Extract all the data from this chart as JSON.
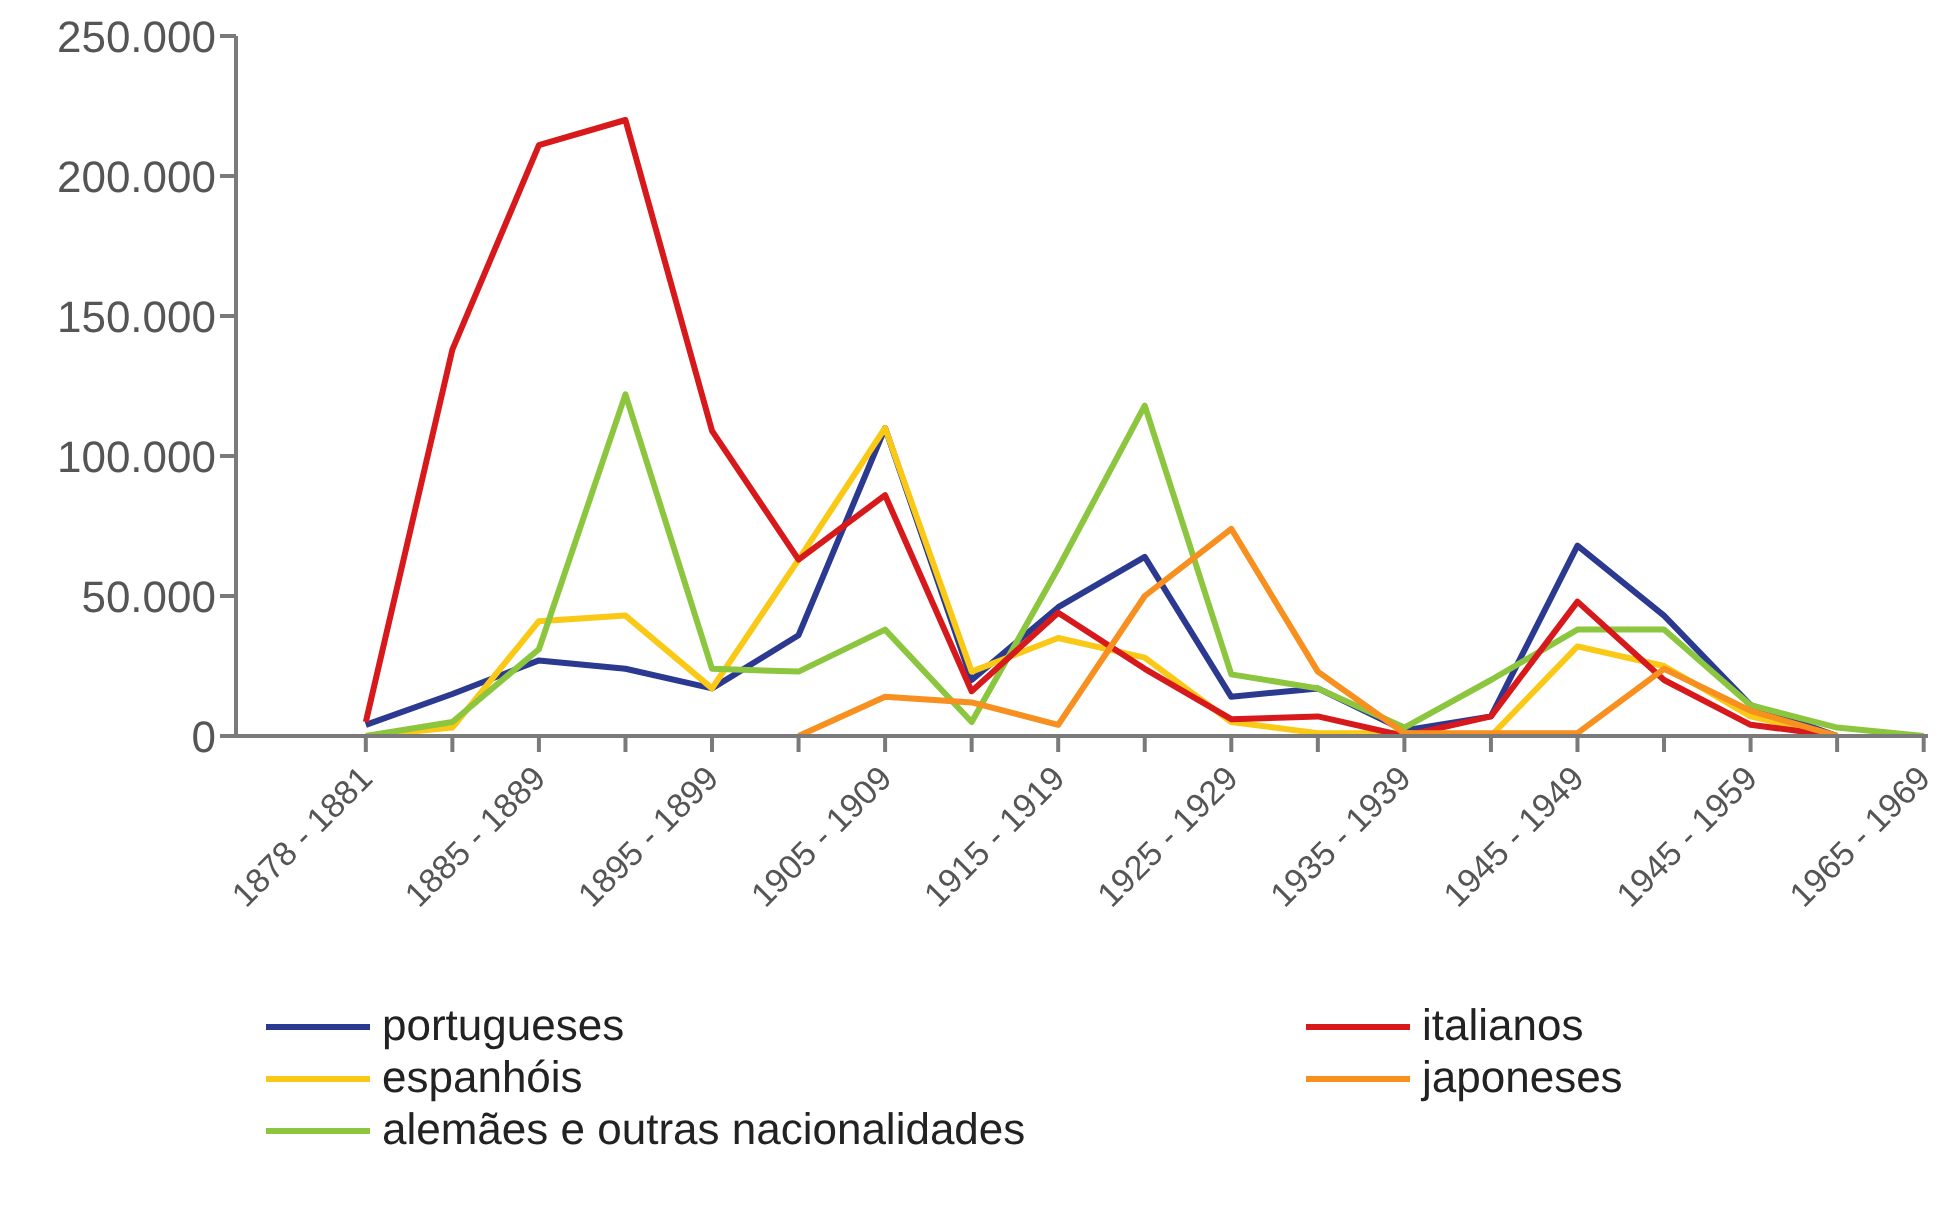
{
  "chart_data": {
    "type": "line",
    "categories": [
      "1878 - 1881",
      null,
      "1885 - 1889",
      null,
      "1895 - 1899",
      null,
      "1905 - 1909",
      null,
      "1915 - 1919",
      null,
      "1925 - 1929",
      null,
      "1935 - 1939",
      null,
      "1945 - 1949",
      null,
      "1945 - 1959",
      null,
      "1965 - 1969"
    ],
    "series": [
      {
        "name": "portugueses",
        "color": "#2b3990",
        "values": [
          4000,
          15000,
          27000,
          24000,
          17000,
          36000,
          110000,
          20000,
          46000,
          64000,
          14000,
          17000,
          2000,
          7000,
          68000,
          43000,
          11000,
          0,
          null
        ]
      },
      {
        "name": "espanhóis",
        "color": "#f9c916",
        "values": [
          0,
          3000,
          41000,
          43000,
          17000,
          63000,
          110000,
          23000,
          35000,
          28000,
          5000,
          1000,
          1000,
          0,
          32000,
          25000,
          7000,
          0,
          null
        ]
      },
      {
        "name": "alemães e outras nacionalidades",
        "color": "#8cc63f",
        "values": [
          0,
          5000,
          31000,
          122000,
          24000,
          23000,
          38000,
          5000,
          60000,
          118000,
          22000,
          17000,
          3000,
          20000,
          38000,
          38000,
          11000,
          3000,
          0
        ]
      },
      {
        "name": "italianos",
        "color": "#d7191c",
        "values": [
          5000,
          138000,
          211000,
          220000,
          109000,
          63000,
          86000,
          16000,
          44000,
          24000,
          6000,
          7000,
          0,
          7000,
          48000,
          20000,
          4000,
          0,
          null
        ]
      },
      {
        "name": "japoneses",
        "color": "#f7901e",
        "values": [
          null,
          null,
          null,
          null,
          null,
          0,
          14000,
          12000,
          4000,
          50000,
          74000,
          23000,
          1000,
          1000,
          1000,
          24000,
          9000,
          0,
          null
        ]
      }
    ],
    "ylim": [
      0,
      250000
    ],
    "yticks": [
      {
        "value": 0,
        "label": "0"
      },
      {
        "value": 50000,
        "label": "50.000"
      },
      {
        "value": 100000,
        "label": "100.000"
      },
      {
        "value": 150000,
        "label": "150.000"
      },
      {
        "value": 200000,
        "label": "200.000"
      },
      {
        "value": 250000,
        "label": "250.000"
      }
    ],
    "grid": false,
    "legend": "bottom",
    "marker": "none",
    "line_style": "solid"
  }
}
